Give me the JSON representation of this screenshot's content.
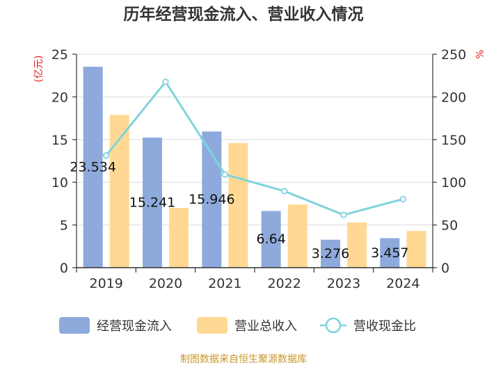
{
  "chart_data": {
    "type": "bar",
    "title": "历年经营现金流入、营业收入情况",
    "categories": [
      "2019",
      "2020",
      "2021",
      "2022",
      "2023",
      "2024"
    ],
    "left_axis": {
      "unit": "(亿元)",
      "ylim": [
        0,
        25
      ],
      "ticks": [
        0,
        5,
        10,
        15,
        20,
        25
      ]
    },
    "right_axis": {
      "unit": "%",
      "ylim": [
        0,
        250
      ],
      "ticks": [
        0,
        50,
        100,
        150,
        200,
        250
      ]
    },
    "series": [
      {
        "name": "经营现金流入",
        "type": "bar",
        "axis": "left",
        "color": "#8eaadc",
        "values": [
          23.534,
          15.241,
          15.946,
          6.64,
          3.276,
          3.457
        ],
        "labels": [
          "23.534",
          "15.241",
          "15.946",
          "6.64",
          "3.276",
          "3.457"
        ]
      },
      {
        "name": "营业总收入",
        "type": "bar",
        "axis": "left",
        "color": "#ffd994",
        "values": [
          17.9,
          7.0,
          14.6,
          7.4,
          5.3,
          4.3
        ]
      },
      {
        "name": "营收现金比",
        "type": "line",
        "axis": "right",
        "color": "#7fd3db",
        "values": [
          131.5,
          217.7,
          109.2,
          89.7,
          61.8,
          80.4
        ]
      }
    ],
    "source": "制图数据来自恒生聚源数据库"
  }
}
